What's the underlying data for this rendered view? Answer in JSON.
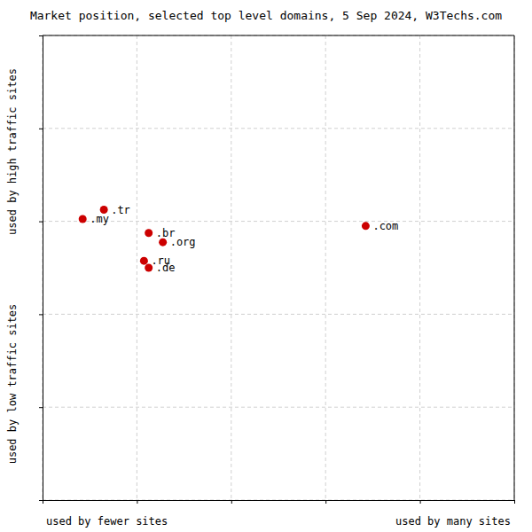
{
  "chart_data": {
    "type": "scatter",
    "title": "Market position, selected top level domains, 5 Sep 2024, W3Techs.com",
    "x_label_left": "used by fewer sites",
    "x_label_right": "used by many sites",
    "y_label_top": "used by high traffic sites",
    "y_label_bottom": "used by low traffic sites",
    "labels": [
      ".tr",
      ".my",
      ".br",
      ".org",
      ".ru",
      ".de",
      ".com"
    ],
    "x": [
      0.13,
      0.085,
      0.225,
      0.255,
      0.215,
      0.225,
      0.685
    ],
    "values": [
      0.625,
      0.605,
      0.575,
      0.555,
      0.515,
      0.5,
      0.59
    ],
    "color": "#cc0000",
    "xlim": [
      0.0,
      1.0
    ],
    "ylim": [
      0.0,
      1.0
    ],
    "xticks": [
      0,
      0.2,
      0.4,
      0.6,
      0.8,
      1
    ],
    "yticks": [
      0,
      0.2,
      0.4,
      0.6,
      0.8,
      1
    ],
    "grid": true,
    "tick_labels": false
  }
}
